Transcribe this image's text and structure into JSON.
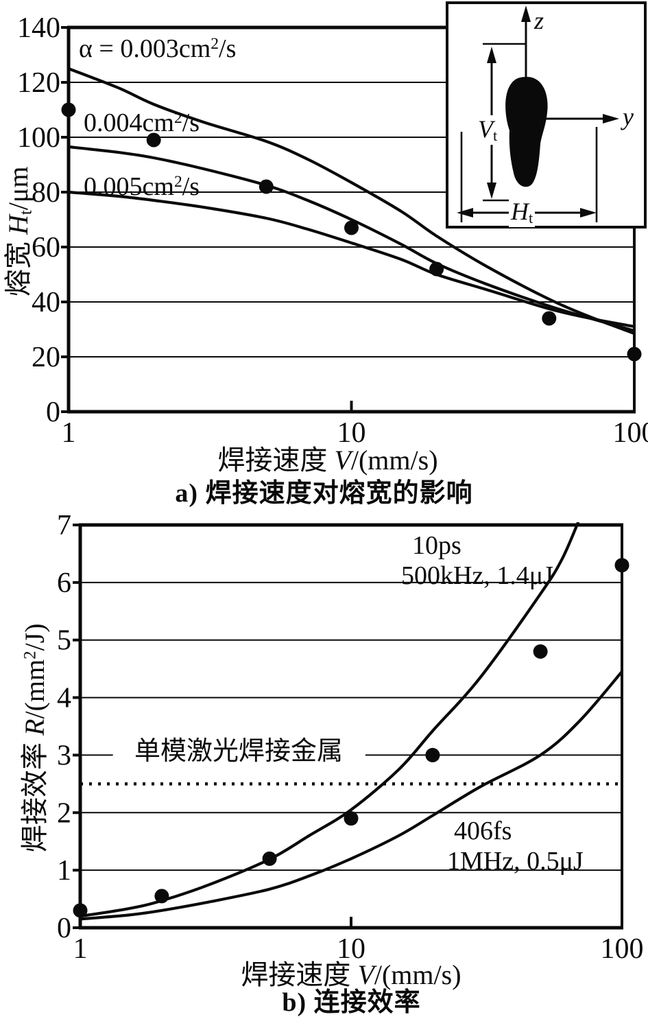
{
  "figure": {
    "background": "#ffffff",
    "ink": "#0a0a0a"
  },
  "chart_data": [
    {
      "id": "a",
      "type": "line",
      "caption": "a) 焊接速度对熔宽的影响",
      "xlabel": {
        "text": "焊接速度 ",
        "sym": "V",
        "unit": "/(mm/s)"
      },
      "ylabel": {
        "text": "熔宽 ",
        "sym": "H",
        "sub": "t",
        "unit": "/μm"
      },
      "xscale": "log",
      "xlim": [
        1,
        100
      ],
      "ylim": [
        0,
        140
      ],
      "xticks": [
        1,
        10,
        100
      ],
      "yticks": [
        0,
        20,
        40,
        60,
        80,
        100,
        120,
        140
      ],
      "grid": "horizontal",
      "series": [
        {
          "name": "alpha-0.003",
          "label": {
            "a": "α = 0.003cm",
            "sup": "2",
            "b": "/s"
          },
          "x": [
            1,
            1.5,
            2,
            3,
            5,
            7,
            10,
            15,
            20,
            30,
            50,
            70,
            100
          ],
          "y": [
            125,
            118,
            112,
            105.5,
            98.5,
            92,
            83.5,
            73,
            64,
            53,
            41,
            34.5,
            28.5
          ]
        },
        {
          "name": "alpha-0.004",
          "label": {
            "a": "0.004cm",
            "sup": "2",
            "b": "/s"
          },
          "x": [
            1,
            1.5,
            2,
            3,
            5,
            7,
            10,
            15,
            20,
            30,
            50,
            70,
            100
          ],
          "y": [
            96.5,
            94.5,
            92.5,
            88.5,
            82.5,
            77,
            70,
            61,
            54,
            46.5,
            38.5,
            34,
            29.5
          ]
        },
        {
          "name": "alpha-0.005",
          "label": {
            "a": "0.005cm",
            "sup": "2",
            "b": "/s"
          },
          "x": [
            1,
            1.5,
            2,
            3,
            5,
            7,
            10,
            15,
            20,
            30,
            50,
            70,
            100
          ],
          "y": [
            80,
            78.5,
            77,
            74.5,
            70.5,
            66.5,
            61.5,
            55.5,
            50,
            44.5,
            37.5,
            34,
            31
          ]
        }
      ],
      "points": {
        "name": "measured-melt-width",
        "x": [
          1,
          2,
          5,
          10,
          20,
          50,
          100
        ],
        "y": [
          110,
          99,
          82,
          67,
          52,
          34,
          21
        ]
      },
      "inset": {
        "z": "z",
        "y": "y",
        "v": {
          "sym": "V",
          "sub": "t"
        },
        "h": {
          "sym": "H",
          "sub": "t"
        }
      }
    },
    {
      "id": "b",
      "type": "line",
      "caption": "b) 连接效率",
      "xlabel": {
        "text": "焊接速度 ",
        "sym": "V",
        "unit": "/(mm/s)"
      },
      "ylabel": {
        "text": "焊接效率 ",
        "sym": "R",
        "u1": "/(mm",
        "sup": "2",
        "u2": "/J)"
      },
      "xscale": "log",
      "xlim": [
        1,
        100
      ],
      "ylim": [
        0,
        7
      ],
      "xticks": [
        1,
        10,
        100
      ],
      "yticks": [
        0,
        1,
        2,
        3,
        4,
        5,
        6,
        7
      ],
      "grid": "horizontal",
      "broken_grid": {
        "y": 3,
        "segments": [
          [
            1,
            1.32
          ],
          [
            11.3,
            100
          ]
        ]
      },
      "threshold": {
        "y": 2.5,
        "style": "dotted",
        "label": "单模激光焊接金属"
      },
      "series": [
        {
          "name": "10ps",
          "label_lines": {
            "l1": "10ps",
            "l2": "500kHz, 1.4μJ"
          },
          "x": [
            1,
            1.5,
            2,
            3,
            5,
            7,
            10,
            15,
            20,
            30,
            50,
            60,
            69
          ],
          "y": [
            0.2,
            0.33,
            0.47,
            0.75,
            1.19,
            1.6,
            2.05,
            2.75,
            3.42,
            4.35,
            5.8,
            6.4,
            7.05
          ]
        },
        {
          "name": "406fs",
          "label_lines": {
            "l1": "406fs",
            "l2": "1MHz, 0.5μJ"
          },
          "x": [
            1,
            1.5,
            2,
            3,
            5,
            7,
            10,
            15,
            20,
            30,
            50,
            70,
            100
          ],
          "y": [
            0.15,
            0.22,
            0.3,
            0.45,
            0.67,
            0.9,
            1.2,
            1.6,
            1.95,
            2.45,
            3.0,
            3.6,
            4.45
          ]
        }
      ],
      "points": {
        "name": "measured-joining-efficiency",
        "x": [
          1,
          2,
          5,
          10,
          20,
          50,
          100
        ],
        "y": [
          0.3,
          0.55,
          1.2,
          1.9,
          3.0,
          4.8,
          6.3
        ]
      }
    }
  ]
}
